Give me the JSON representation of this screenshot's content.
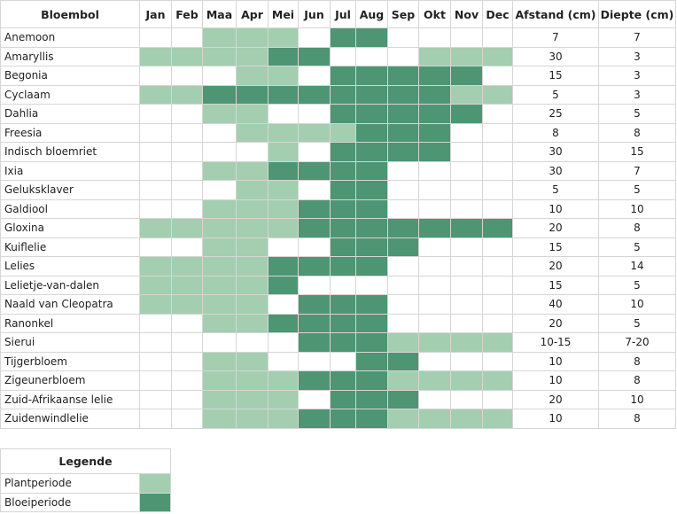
{
  "table": {
    "headers": [
      "Bloembol",
      "Jan",
      "Feb",
      "Maa",
      "Apr",
      "Mei",
      "Jun",
      "Jul",
      "Aug",
      "Sep",
      "Okt",
      "Nov",
      "Dec",
      "Afstand (cm)",
      "Diepte (cm)"
    ],
    "colors": {
      "plant": "#a4ceb0",
      "bloei": "#4e9574"
    },
    "rows": [
      {
        "name": "Anemoon",
        "months": [
          null,
          null,
          "plant",
          "plant",
          "plant",
          null,
          "bloei",
          "bloei",
          null,
          null,
          null,
          null
        ],
        "afstand": 7,
        "diepte": 7
      },
      {
        "name": "Amaryllis",
        "months": [
          "plant",
          "plant",
          "plant",
          "plant",
          "bloei",
          "bloei",
          null,
          null,
          null,
          "plant",
          "plant",
          "plant"
        ],
        "afstand": 30,
        "diepte": 3
      },
      {
        "name": "Begonia",
        "months": [
          null,
          null,
          null,
          "plant",
          "plant",
          null,
          "bloei",
          "bloei",
          "bloei",
          "bloei",
          "bloei",
          null
        ],
        "afstand": 15,
        "diepte": 3
      },
      {
        "name": "Cyclaam",
        "months": [
          "plant",
          "plant",
          "bloei",
          "bloei",
          "bloei",
          "bloei",
          "bloei",
          "bloei",
          "bloei",
          "bloei",
          "plant",
          "plant"
        ],
        "afstand": 5,
        "diepte": 3
      },
      {
        "name": "Dahlia",
        "months": [
          null,
          null,
          "plant",
          "plant",
          null,
          null,
          "bloei",
          "bloei",
          "bloei",
          "bloei",
          "bloei",
          null
        ],
        "afstand": 25,
        "diepte": 5
      },
      {
        "name": "Freesia",
        "months": [
          null,
          null,
          null,
          "plant",
          "plant",
          "plant",
          "plant",
          "bloei",
          "bloei",
          "bloei",
          null,
          null
        ],
        "afstand": 8,
        "diepte": 8
      },
      {
        "name": "Indisch bloemriet",
        "months": [
          null,
          null,
          null,
          null,
          "plant",
          null,
          "bloei",
          "bloei",
          "bloei",
          "bloei",
          null,
          null
        ],
        "afstand": 30,
        "diepte": 15
      },
      {
        "name": "Ixia",
        "months": [
          null,
          null,
          "plant",
          "plant",
          "bloei",
          "bloei",
          "bloei",
          "bloei",
          null,
          null,
          null,
          null
        ],
        "afstand": 30,
        "diepte": 7
      },
      {
        "name": "Geluksklaver",
        "months": [
          null,
          null,
          null,
          "plant",
          "plant",
          null,
          "bloei",
          "bloei",
          null,
          null,
          null,
          null
        ],
        "afstand": 5,
        "diepte": 5
      },
      {
        "name": "Galdiool",
        "months": [
          null,
          null,
          "plant",
          "plant",
          "plant",
          "bloei",
          "bloei",
          "bloei",
          null,
          null,
          null,
          null
        ],
        "afstand": 10,
        "diepte": 10
      },
      {
        "name": "Gloxina",
        "months": [
          "plant",
          "plant",
          "plant",
          "plant",
          "plant",
          "bloei",
          "bloei",
          "bloei",
          "bloei",
          "bloei",
          "bloei",
          "bloei"
        ],
        "afstand": 20,
        "diepte": 8
      },
      {
        "name": "Kuiflelie",
        "months": [
          null,
          null,
          "plant",
          "plant",
          null,
          null,
          "bloei",
          "bloei",
          "bloei",
          null,
          null,
          null
        ],
        "afstand": 15,
        "diepte": 5
      },
      {
        "name": "Lelies",
        "months": [
          "plant",
          "plant",
          "plant",
          "plant",
          "bloei",
          "bloei",
          "bloei",
          "bloei",
          null,
          null,
          null,
          null
        ],
        "afstand": 20,
        "diepte": 14
      },
      {
        "name": "Lelietje-van-dalen",
        "months": [
          "plant",
          "plant",
          "plant",
          "plant",
          "bloei",
          null,
          null,
          null,
          null,
          null,
          null,
          null
        ],
        "afstand": 15,
        "diepte": 5
      },
      {
        "name": "Naald van Cleopatra",
        "months": [
          "plant",
          "plant",
          "plant",
          "plant",
          null,
          "bloei",
          "bloei",
          "bloei",
          null,
          null,
          null,
          null
        ],
        "afstand": 40,
        "diepte": 10
      },
      {
        "name": "Ranonkel",
        "months": [
          null,
          null,
          "plant",
          "plant",
          "bloei",
          "bloei",
          "bloei",
          "bloei",
          null,
          null,
          null,
          null
        ],
        "afstand": 20,
        "diepte": 5
      },
      {
        "name": "Sierui",
        "months": [
          null,
          null,
          null,
          null,
          null,
          "bloei",
          "bloei",
          "bloei",
          "plant",
          "plant",
          "plant",
          "plant"
        ],
        "afstand": "10-15",
        "diepte": "7-20"
      },
      {
        "name": "Tijgerbloem",
        "months": [
          null,
          null,
          "plant",
          "plant",
          null,
          null,
          null,
          "bloei",
          "bloei",
          null,
          null,
          null
        ],
        "afstand": 10,
        "diepte": 8
      },
      {
        "name": "Zigeunerbloem",
        "months": [
          null,
          null,
          "plant",
          "plant",
          "plant",
          "bloei",
          "bloei",
          "bloei",
          "plant",
          "plant",
          "plant",
          "plant"
        ],
        "afstand": 10,
        "diepte": 8
      },
      {
        "name": "Zuid-Afrikaanse lelie",
        "months": [
          null,
          null,
          "plant",
          "plant",
          "plant",
          null,
          "bloei",
          "bloei",
          "bloei",
          null,
          null,
          null
        ],
        "afstand": 20,
        "diepte": 10
      },
      {
        "name": "Zuidenwindlelie",
        "months": [
          null,
          null,
          "plant",
          "plant",
          "plant",
          "bloei",
          "bloei",
          "bloei",
          "plant",
          "plant",
          "plant",
          "plant"
        ],
        "afstand": 10,
        "diepte": 8
      }
    ]
  },
  "legend": {
    "title": "Legende",
    "items": [
      {
        "label": "Plantperiode",
        "key": "plant"
      },
      {
        "label": "Bloeiperiode",
        "key": "bloei"
      }
    ]
  }
}
